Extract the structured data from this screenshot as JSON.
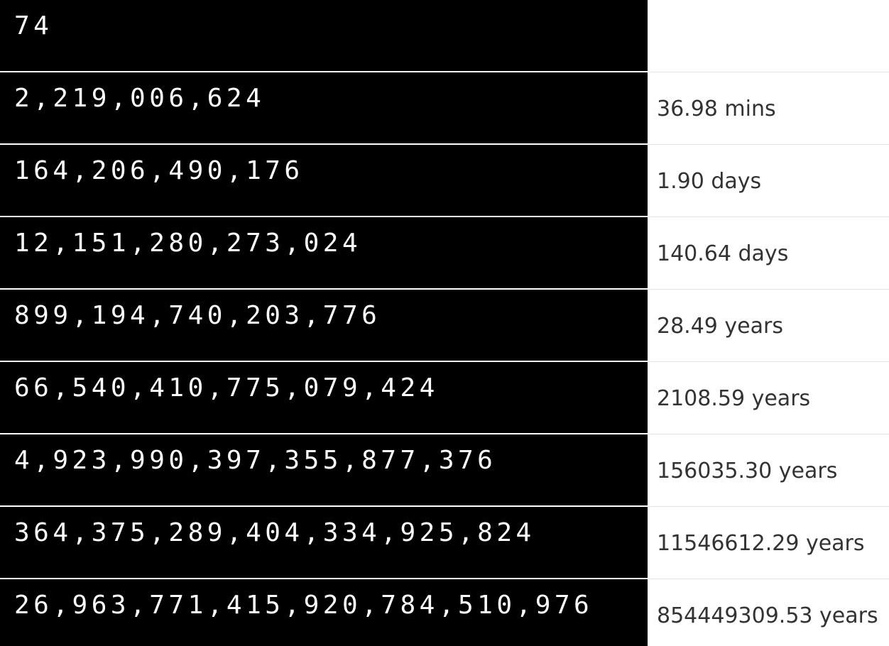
{
  "rows": [
    {
      "count": "74",
      "time": ""
    },
    {
      "count": "2,219,006,624",
      "time": "36.98 mins"
    },
    {
      "count": "164,206,490,176",
      "time": "1.90 days"
    },
    {
      "count": "12,151,280,273,024",
      "time": "140.64 days"
    },
    {
      "count": "899,194,740,203,776",
      "time": "28.49 years"
    },
    {
      "count": "66,540,410,775,079,424",
      "time": "2108.59 years"
    },
    {
      "count": "4,923,990,397,355,877,376",
      "time": "156035.30 years"
    },
    {
      "count": "364,375,289,404,334,925,824",
      "time": "11546612.29 years"
    },
    {
      "count": "26,963,771,415,920,784,510,976",
      "time": "854449309.53 years"
    }
  ]
}
